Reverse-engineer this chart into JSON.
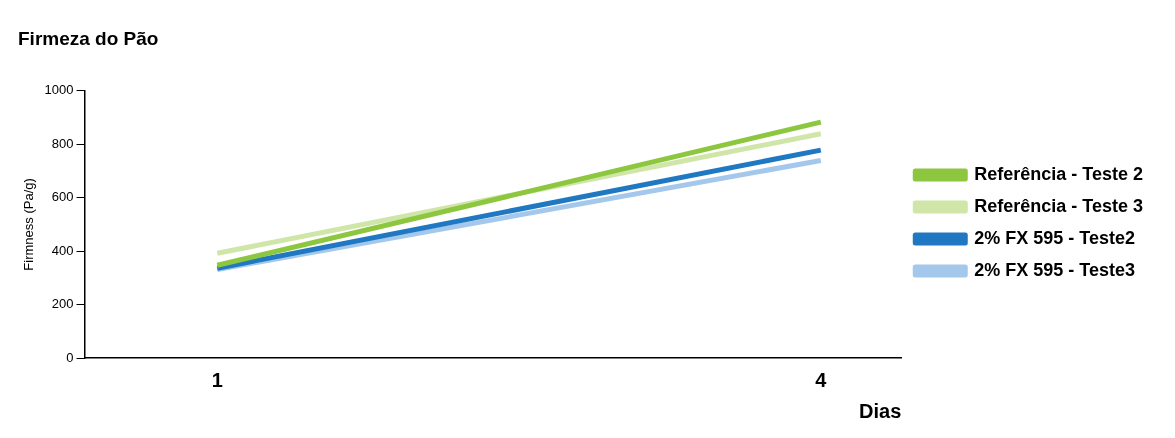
{
  "chart_data": {
    "type": "line",
    "title": "Firmeza do Pão",
    "xlabel": "Dias",
    "ylabel": "Firmness (Pa/g)",
    "x": [
      1,
      4
    ],
    "xlim": [
      0.34,
      4.4
    ],
    "xticks": [
      1,
      4
    ],
    "ylim": [
      0,
      1000
    ],
    "yticks": [
      0,
      200,
      400,
      600,
      800,
      1000
    ],
    "series": [
      {
        "name": "Referência - Teste 2",
        "color": "#8dc63f",
        "values": [
          347,
          883
        ]
      },
      {
        "name": "Referência - Teste 3",
        "color": "#cfe6a8",
        "values": [
          392,
          839
        ]
      },
      {
        "name": "2% FX 595 - Teste2",
        "color": "#1f78c1",
        "values": [
          336,
          778
        ]
      },
      {
        "name": "2% FX 595 - Teste3",
        "color": "#a4c8ec",
        "values": [
          331,
          739
        ]
      }
    ],
    "grid": false,
    "legend": "right",
    "marker": "none",
    "line_style": "solid"
  }
}
